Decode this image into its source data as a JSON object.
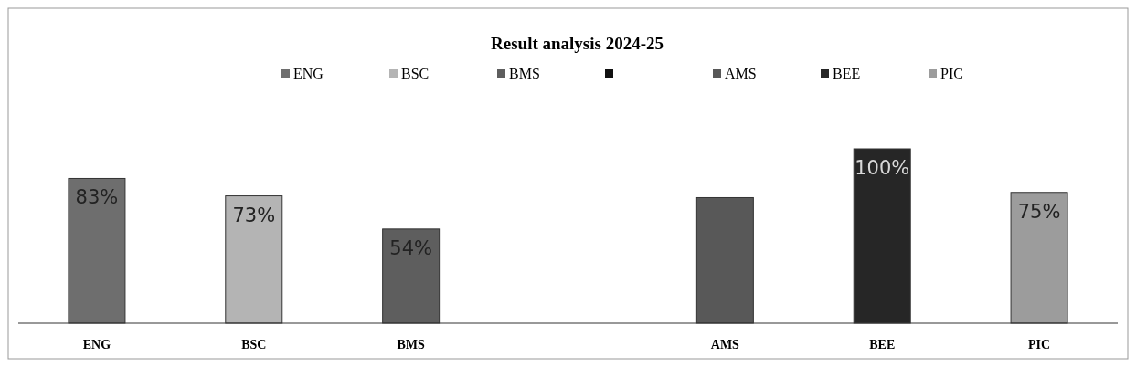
{
  "chart_data": {
    "type": "bar",
    "title": "Result analysis  2024-25",
    "categories": [
      "ENG",
      "BSC",
      "BMS",
      null,
      "AMS",
      "BEE",
      "PIC"
    ],
    "series": [
      {
        "name": "ENG",
        "color": "#6e6e6e",
        "values": [
          83,
          null,
          null,
          null,
          null,
          null,
          null
        ],
        "value_labels": [
          "83%",
          null,
          null,
          null,
          null,
          null,
          null
        ]
      },
      {
        "name": "BSC",
        "color": "#b4b4b4",
        "values": [
          null,
          73,
          null,
          null,
          null,
          null,
          null
        ],
        "value_labels": [
          null,
          "73%",
          null,
          null,
          null,
          null,
          null
        ]
      },
      {
        "name": "BMS",
        "color": "#5e5e5e",
        "values": [
          null,
          null,
          54,
          null,
          null,
          null,
          null
        ],
        "value_labels": [
          null,
          null,
          "54%",
          null,
          null,
          null,
          null
        ]
      },
      {
        "color": "#111111",
        "values": [
          null,
          null,
          null,
          null,
          null,
          null,
          null
        ]
      },
      {
        "name": "AMS",
        "color": "#585858",
        "values": [
          null,
          null,
          null,
          null,
          72,
          null,
          null
        ]
      },
      {
        "name": "BEE",
        "color": "#262626",
        "values": [
          null,
          null,
          null,
          null,
          null,
          100,
          null
        ],
        "value_labels": [
          null,
          null,
          null,
          null,
          null,
          "100%",
          null
        ]
      },
      {
        "name": "PIC",
        "color": "#9c9c9c",
        "values": [
          null,
          null,
          null,
          null,
          null,
          null,
          75
        ],
        "value_labels": [
          null,
          null,
          null,
          null,
          null,
          null,
          "75%"
        ]
      }
    ],
    "legend": "top"
  }
}
